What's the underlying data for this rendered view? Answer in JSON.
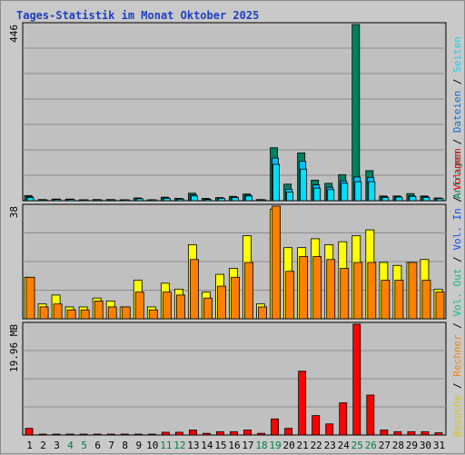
{
  "title": "Tages-Statistik im Monat Oktober 2025",
  "colors": {
    "anfragen": "#008060",
    "dateien": "#00c0ff",
    "seiten": "#00e0ff",
    "besuche": "#ffff00",
    "rechner": "#ff8000",
    "volumen": "#ff0000",
    "weekend_tick": "#00803f",
    "weekday_tick": "#000000",
    "panel_bg": "#c0c0c0",
    "grid": "#8c8c8c"
  },
  "side_labels": {
    "top": [
      {
        "text": "Anfragen",
        "color": "#008060"
      },
      {
        "text": " / ",
        "color": "#000000"
      },
      {
        "text": "Dateien",
        "color": "#0070e0"
      },
      {
        "text": " / ",
        "color": "#000000"
      },
      {
        "text": "Seiten",
        "color": "#00d8ff"
      }
    ],
    "mid": [
      {
        "text": "Besuche",
        "color": "#d8c800"
      },
      {
        "text": " / ",
        "color": "#000000"
      },
      {
        "text": "Rechner",
        "color": "#ff8000"
      },
      {
        "text": " / ",
        "color": "#000000"
      },
      {
        "text": "Vol. Out",
        "color": "#00c080"
      },
      {
        "text": " / ",
        "color": "#000000"
      },
      {
        "text": "Vol. In",
        "color": "#0050ff"
      },
      {
        "text": " / ",
        "color": "#000000"
      },
      {
        "text": "Volumen",
        "color": "#ff0000"
      }
    ]
  },
  "chart_data": {
    "type": "bar",
    "categories": [
      "1",
      "2",
      "3",
      "4",
      "5",
      "6",
      "7",
      "8",
      "9",
      "10",
      "11",
      "12",
      "13",
      "14",
      "15",
      "16",
      "17",
      "18",
      "19",
      "20",
      "21",
      "22",
      "23",
      "24",
      "25",
      "26",
      "27",
      "28",
      "29",
      "30",
      "31"
    ],
    "weekend_days": [
      "4",
      "5",
      "11",
      "12",
      "18",
      "19",
      "25",
      "26"
    ],
    "panels": [
      {
        "name": "requests",
        "max_label": "446",
        "ylim": [
          0,
          446
        ],
        "series": [
          {
            "name": "Anfragen",
            "values": [
              13,
              3,
              4,
              4,
              2,
              3,
              3,
              2,
              7,
              2,
              9,
              6,
              19,
              6,
              8,
              11,
              17,
              3,
              134,
              42,
              121,
              52,
              44,
              66,
              446,
              76,
              12,
              12,
              18,
              12,
              7
            ]
          },
          {
            "name": "Dateien",
            "values": [
              10,
              2,
              4,
              4,
              2,
              2,
              2,
              2,
              6,
              1,
              7,
              5,
              15,
              4,
              7,
              9,
              14,
              2,
              108,
              29,
              100,
              40,
              34,
              50,
              60,
              59,
              10,
              10,
              12,
              10,
              6
            ]
          },
          {
            "name": "Seiten",
            "values": [
              8,
              2,
              3,
              3,
              2,
              2,
              2,
              2,
              5,
              1,
              6,
              4,
              12,
              3,
              6,
              8,
              12,
              2,
              92,
              22,
              80,
              32,
              28,
              44,
              48,
              48,
              8,
              9,
              11,
              8,
              5
            ]
          }
        ]
      },
      {
        "name": "visits",
        "max_label": "38",
        "ylim": [
          0,
          38
        ],
        "series": [
          {
            "name": "Besuche",
            "values": [
              14,
              5,
              8,
              4,
              4,
              7,
              6,
              4,
              13,
              4,
              12,
              10,
              25,
              9,
              15,
              17,
              28,
              5,
              37,
              24,
              24,
              27,
              25,
              26,
              28,
              30,
              19,
              18,
              19,
              20,
              10
            ]
          },
          {
            "name": "Rechner",
            "values": [
              14,
              4,
              5,
              3,
              3,
              6,
              4,
              4,
              9,
              3,
              9,
              8,
              20,
              7,
              11,
              14,
              19,
              4,
              38,
              16,
              21,
              21,
              20,
              17,
              19,
              19,
              13,
              13,
              19,
              13,
              9
            ]
          }
        ]
      },
      {
        "name": "volume",
        "max_label": "19.96 MB",
        "ylim": [
          0,
          19.96
        ],
        "series": [
          {
            "name": "Volumen",
            "values": [
              1.2,
              0.15,
              0.15,
              0.15,
              0.15,
              0.15,
              0.15,
              0.15,
              0.15,
              0.15,
              0.5,
              0.5,
              0.9,
              0.3,
              0.6,
              0.6,
              0.9,
              0.3,
              2.9,
              1.2,
              11.5,
              3.5,
              2.0,
              5.8,
              19.96,
              7.2,
              0.9,
              0.6,
              0.6,
              0.6,
              0.4
            ]
          }
        ]
      }
    ]
  }
}
